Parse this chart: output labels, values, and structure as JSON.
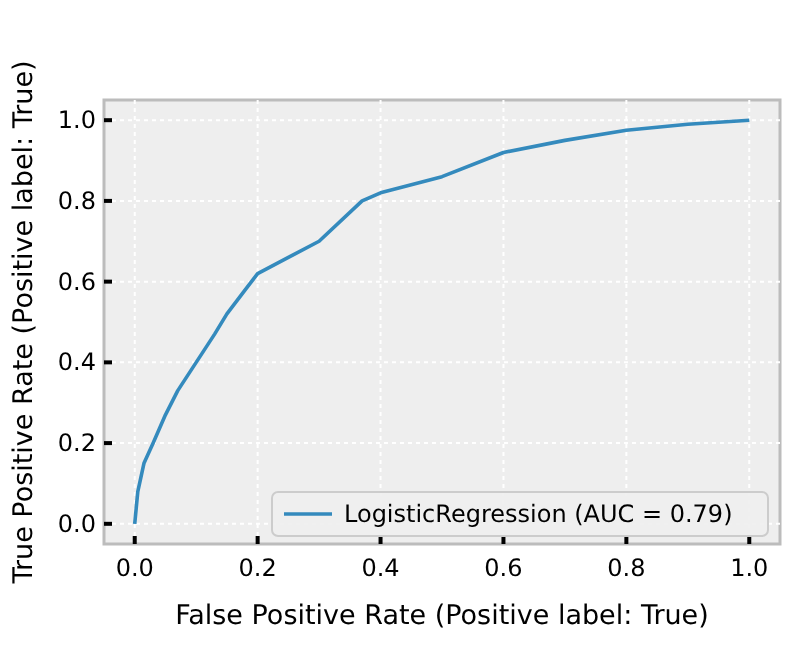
{
  "chart_data": {
    "type": "line",
    "xlabel": "False Positive Rate (Positive label: True)",
    "ylabel": "True Positive Rate (Positive label: True)",
    "xlim": [
      -0.05,
      1.05
    ],
    "ylim": [
      -0.05,
      1.05
    ],
    "xticks": [
      {
        "value": 0,
        "label": "0.0"
      },
      {
        "value": 0.2,
        "label": "0.2"
      },
      {
        "value": 0.4,
        "label": "0.4"
      },
      {
        "value": 0.6,
        "label": "0.6"
      },
      {
        "value": 0.8,
        "label": "0.8"
      },
      {
        "value": 1,
        "label": "1.0"
      }
    ],
    "yticks": [
      {
        "value": 0,
        "label": "0.0"
      },
      {
        "value": 0.2,
        "label": "0.2"
      },
      {
        "value": 0.4,
        "label": "0.4"
      },
      {
        "value": 0.6,
        "label": "0.6"
      },
      {
        "value": 0.8,
        "label": "0.8"
      },
      {
        "value": 1,
        "label": "1.0"
      }
    ],
    "grid": true,
    "legend": "bottom right",
    "series": [
      {
        "name": "LogisticRegression (AUC = 0.79)",
        "color": "#348abd",
        "x": [
          0,
          0.005,
          0.015,
          0.03,
          0.05,
          0.07,
          0.1,
          0.13,
          0.15,
          0.18,
          0.2,
          0.25,
          0.3,
          0.37,
          0.4,
          0.5,
          0.6,
          0.7,
          0.8,
          0.9,
          1
        ],
        "values": [
          0,
          0.08,
          0.15,
          0.2,
          0.27,
          0.33,
          0.4,
          0.47,
          0.52,
          0.58,
          0.62,
          0.66,
          0.7,
          0.8,
          0.82,
          0.86,
          0.92,
          0.95,
          0.975,
          0.99,
          1
        ]
      }
    ]
  }
}
